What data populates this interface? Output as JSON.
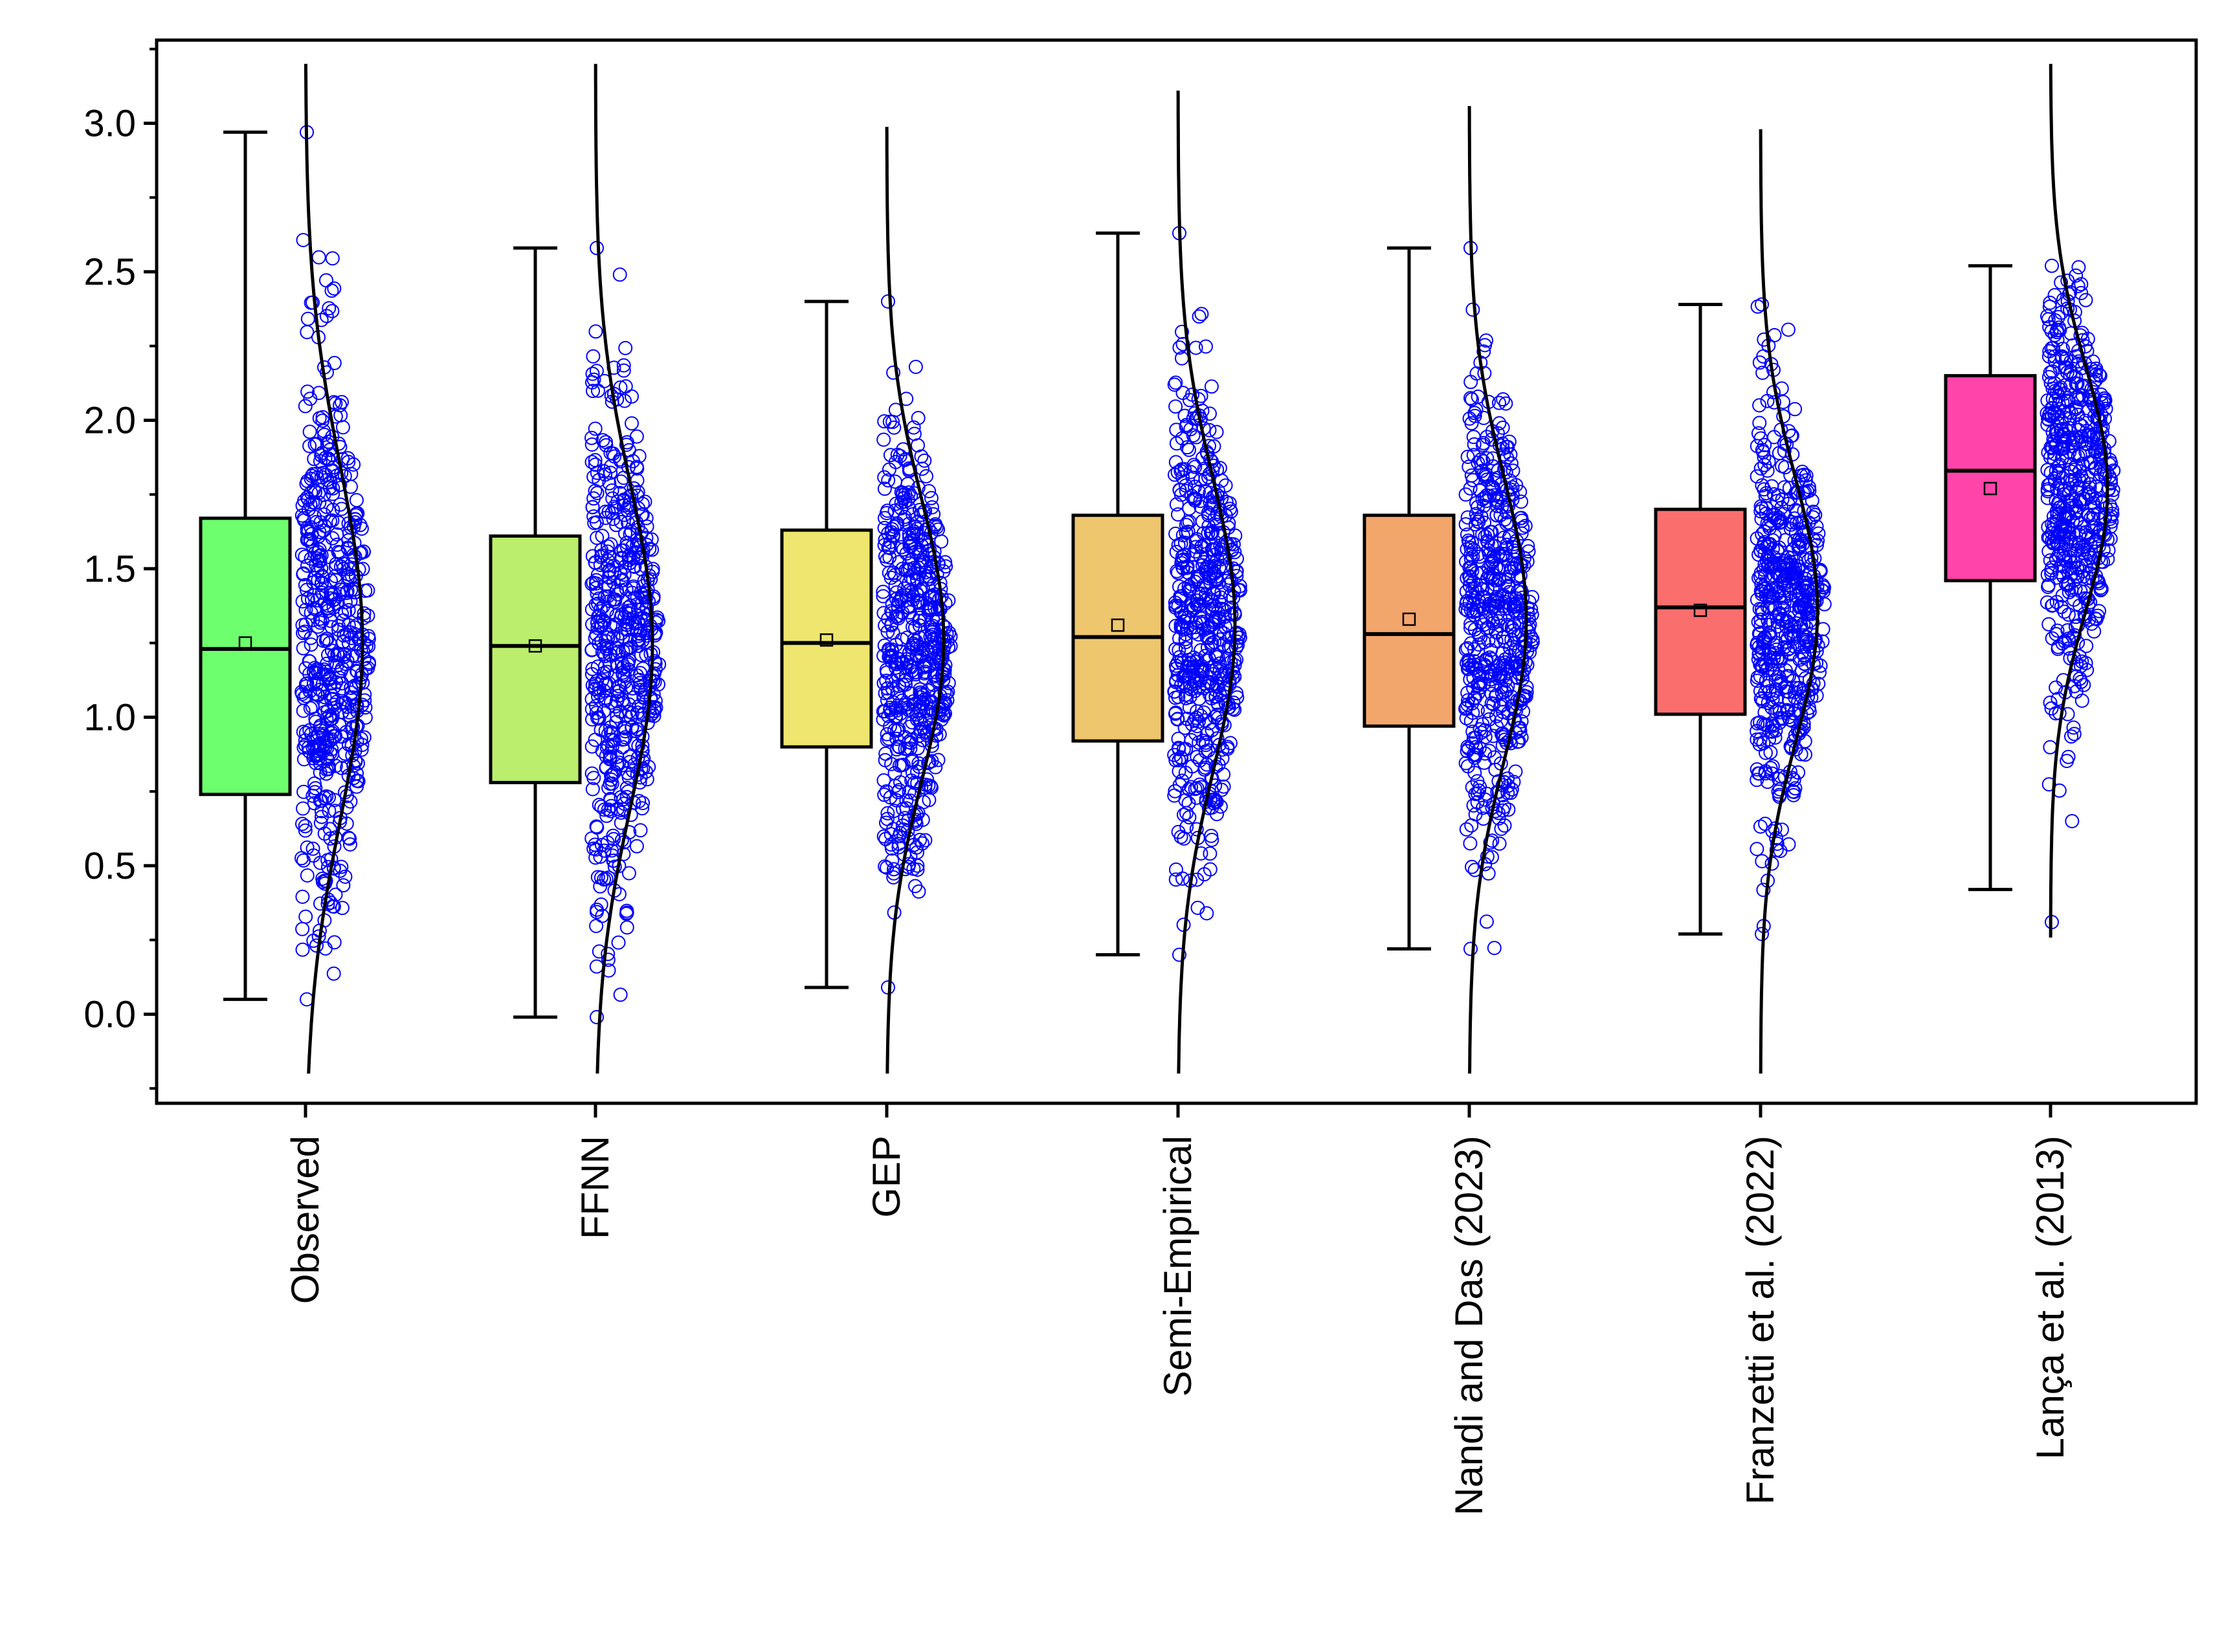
{
  "chart_data": {
    "type": "box",
    "title": "",
    "xlabel": "",
    "ylabel": "",
    "ylim": [
      -0.3,
      3.28
    ],
    "yticks": [
      0.0,
      0.5,
      1.0,
      1.5,
      2.0,
      2.5,
      3.0
    ],
    "ytick_labels": [
      "0.0",
      "0.5",
      "1.0",
      "1.5",
      "2.0",
      "2.5",
      "3.0"
    ],
    "categories": [
      "Observed",
      "FFNN",
      "GEP",
      "Semi-Empirical",
      "Nandi and Das (2023)",
      "Franzetti et al. (2022)",
      "Lança et al. (2013)"
    ],
    "series": [
      {
        "name": "Observed",
        "color": "#6EFF6E",
        "min": 0.05,
        "q1": 0.74,
        "median": 1.23,
        "mean": 1.25,
        "q3": 1.67,
        "max": 2.97,
        "data_min": 0.05,
        "data_max": 2.97,
        "sd": 0.6
      },
      {
        "name": "FFNN",
        "color": "#BBEE6C",
        "min": -0.01,
        "q1": 0.78,
        "median": 1.24,
        "mean": 1.24,
        "q3": 1.61,
        "max": 2.58,
        "data_min": -0.01,
        "data_max": 2.58,
        "sd": 0.55
      },
      {
        "name": "GEP",
        "color": "#EEE66E",
        "min": 0.09,
        "q1": 0.9,
        "median": 1.25,
        "mean": 1.26,
        "q3": 1.63,
        "max": 2.4,
        "data_min": 0.09,
        "data_max": 2.4,
        "sd": 0.48
      },
      {
        "name": "Semi-Empirical",
        "color": "#EEC66E",
        "min": 0.2,
        "q1": 0.92,
        "median": 1.27,
        "mean": 1.31,
        "q3": 1.68,
        "max": 2.63,
        "data_min": 0.2,
        "data_max": 2.63,
        "sd": 0.5
      },
      {
        "name": "Nandi and Das (2023)",
        "color": "#F3A66C",
        "min": 0.22,
        "q1": 0.97,
        "median": 1.28,
        "mean": 1.33,
        "q3": 1.68,
        "max": 2.58,
        "data_min": 0.22,
        "data_max": 2.58,
        "sd": 0.48
      },
      {
        "name": "Franzetti et al. (2022)",
        "color": "#FB6E6E",
        "min": 0.27,
        "q1": 1.01,
        "median": 1.37,
        "mean": 1.36,
        "q3": 1.7,
        "max": 2.39,
        "data_min": 0.27,
        "data_max": 2.39,
        "sd": 0.45
      },
      {
        "name": "Lança et al. (2013)",
        "color": "#FF44AA",
        "min": 0.42,
        "q1": 1.46,
        "median": 1.83,
        "mean": 1.77,
        "q3": 2.15,
        "max": 2.52,
        "data_min": 0.31,
        "data_max": 2.52,
        "sd": 0.42
      }
    ],
    "point_color": "#0000FF",
    "grid": false,
    "legend": "none"
  }
}
